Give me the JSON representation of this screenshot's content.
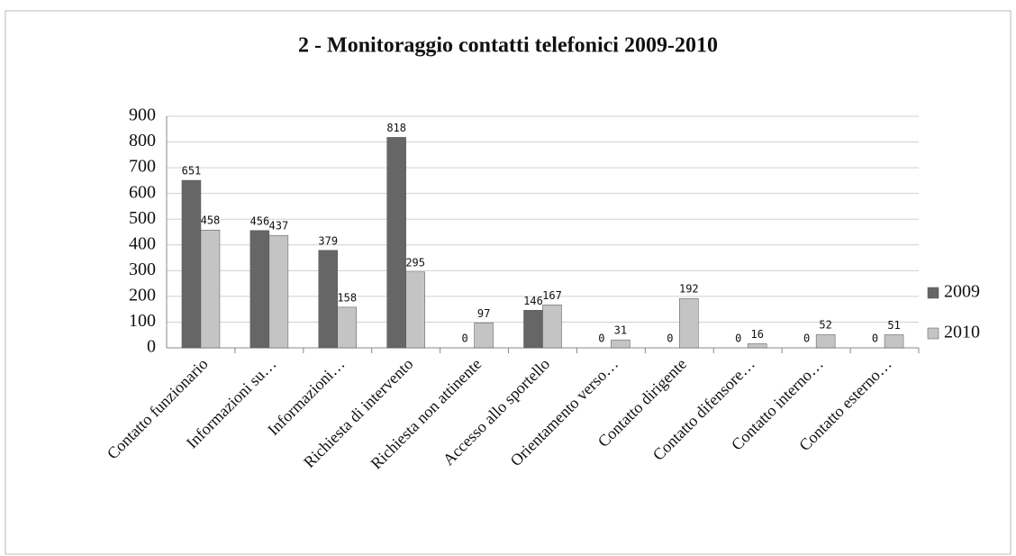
{
  "chart_data": {
    "type": "bar",
    "title": "2 - Monitoraggio contatti telefonici 2009-2010",
    "categories": [
      "Contatto funzionario",
      "Informazioni su…",
      "Informazioni…",
      "Richiesta di intervento",
      "Richiesta non attinente",
      "Accesso allo sportello",
      "Orientamento verso…",
      "Contatto dirigente",
      "Contatto difensore…",
      "Contatto interno…",
      "Contatto esterno…"
    ],
    "series": [
      {
        "name": "2009",
        "color": "#666666",
        "values": [
          651,
          456,
          379,
          818,
          0,
          146,
          0,
          0,
          0,
          0,
          0
        ]
      },
      {
        "name": "2010",
        "color": "#c4c4c4",
        "values": [
          458,
          437,
          158,
          295,
          97,
          167,
          31,
          192,
          16,
          52,
          51
        ]
      }
    ],
    "ylim": [
      0,
      900
    ],
    "yticks": [
      0,
      100,
      200,
      300,
      400,
      500,
      600,
      700,
      800,
      900
    ],
    "grid": true,
    "legend": "right"
  }
}
